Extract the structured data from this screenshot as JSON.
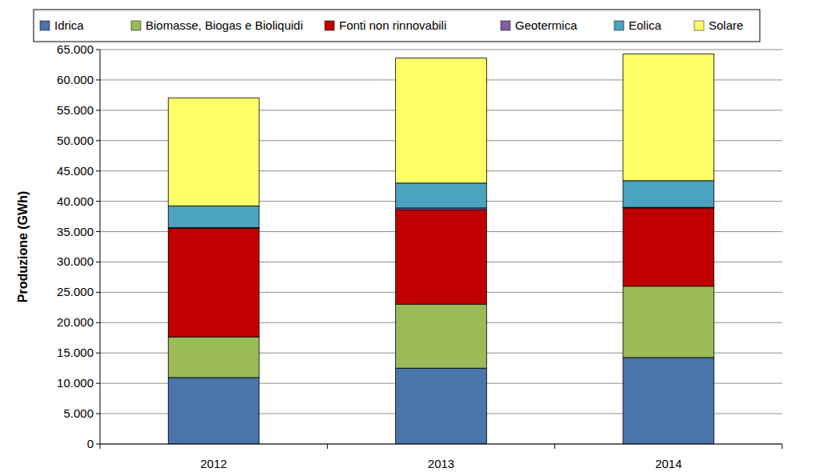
{
  "chart_data": {
    "type": "bar",
    "stacked": true,
    "grid": true,
    "legend": "top",
    "y_label": "Produzione (GWh)",
    "categories": [
      "2012",
      "2013",
      "2014"
    ],
    "series": [
      {
        "name": "Idrica",
        "color": "#4a74aa",
        "values": [
          10950,
          12500,
          14250
        ]
      },
      {
        "name": "Biomasse, Biogas e Bioliquidi",
        "color": "#9bbb59",
        "values": [
          6700,
          10550,
          11750
        ]
      },
      {
        "name": "Fonti non rinnovabili",
        "color": "#c00000",
        "values": [
          17900,
          15550,
          12900
        ]
      },
      {
        "name": "Geotermica",
        "color": "#7f60a0",
        "values": [
          100,
          300,
          100
        ]
      },
      {
        "name": "Eolica",
        "color": "#4aa3bf",
        "values": [
          3600,
          4100,
          4400
        ]
      },
      {
        "name": "Solare",
        "color": "#ffff66",
        "values": [
          17800,
          20600,
          20900
        ]
      }
    ],
    "ylim": [
      0,
      65000
    ],
    "yticks": [
      0,
      {
        "value": 5000,
        "label": "5.000"
      },
      {
        "value": 10000,
        "label": "10.000"
      },
      {
        "value": 15000,
        "label": "15.000"
      },
      {
        "value": 20000,
        "label": "20.000"
      },
      {
        "value": 25000,
        "label": "25.000"
      },
      {
        "value": 30000,
        "label": "30.000"
      },
      {
        "value": 35000,
        "label": "35.000"
      },
      {
        "value": 40000,
        "label": "40.000"
      },
      {
        "value": 45000,
        "label": "45.000"
      },
      {
        "value": 50000,
        "label": "50.000"
      },
      {
        "value": 55000,
        "label": "55.000"
      },
      {
        "value": 60000,
        "label": "60.000"
      },
      {
        "value": 65000,
        "label": "65.000"
      }
    ]
  }
}
